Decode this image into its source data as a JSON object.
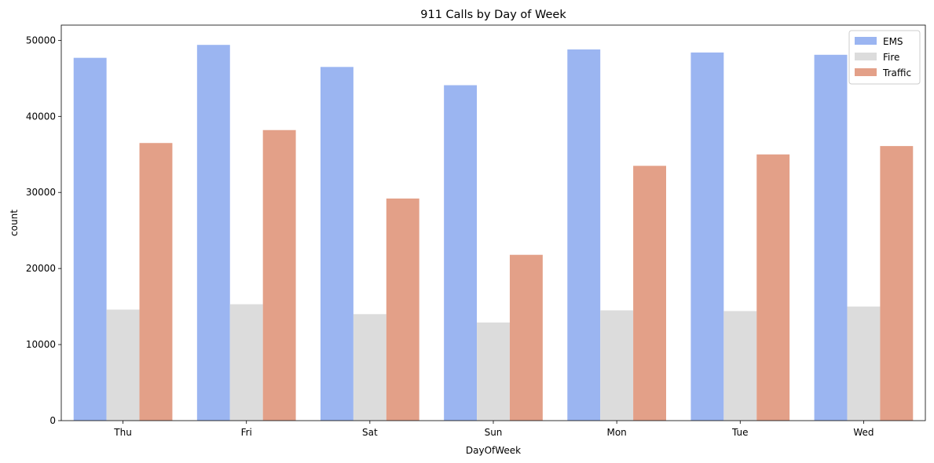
{
  "chart_data": {
    "type": "bar",
    "title": "911 Calls by Day of Week",
    "xlabel": "DayOfWeek",
    "ylabel": "count",
    "categories": [
      "Thu",
      "Fri",
      "Sat",
      "Sun",
      "Mon",
      "Tue",
      "Wed"
    ],
    "series": [
      {
        "name": "EMS",
        "color": "#9bb5f1",
        "values": [
          47700,
          49400,
          46500,
          44100,
          48800,
          48400,
          48100
        ]
      },
      {
        "name": "Fire",
        "color": "#dcdcdc",
        "values": [
          14600,
          15300,
          14000,
          12900,
          14500,
          14400,
          15000
        ]
      },
      {
        "name": "Traffic",
        "color": "#e3a088",
        "values": [
          36500,
          38200,
          29200,
          21800,
          33500,
          35000,
          36100
        ]
      }
    ],
    "ylim": [
      0,
      52000
    ],
    "yticks": [
      0,
      10000,
      20000,
      30000,
      40000,
      50000
    ],
    "grid": false,
    "legend_position": "top-right"
  }
}
